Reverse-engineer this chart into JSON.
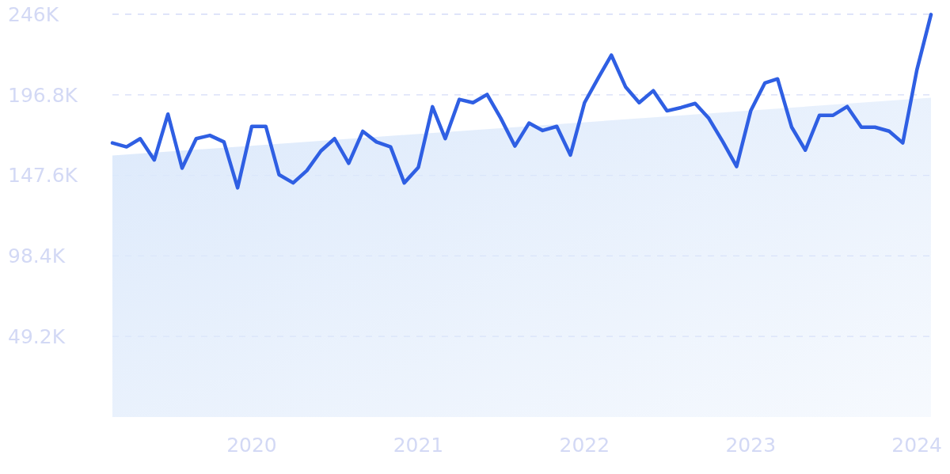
{
  "chart_data": {
    "type": "line",
    "x": [
      "2019-03",
      "2019-04",
      "2019-05",
      "2019-06",
      "2019-07",
      "2019-08",
      "2019-09",
      "2019-10",
      "2019-11",
      "2019-12",
      "2020-01",
      "2020-02",
      "2020-03",
      "2020-04",
      "2020-05",
      "2020-06",
      "2020-07",
      "2020-08",
      "2020-09",
      "2020-10",
      "2020-11",
      "2020-12",
      "2021-01",
      "2021-02",
      "2021-03",
      "2021-04",
      "2021-05",
      "2021-06",
      "2021-07",
      "2021-08",
      "2021-09",
      "2021-10",
      "2021-11",
      "2021-12",
      "2022-01",
      "2022-02",
      "2022-03",
      "2022-04",
      "2022-05",
      "2022-06",
      "2022-07",
      "2022-08",
      "2022-09",
      "2022-10",
      "2022-11",
      "2022-12",
      "2023-01",
      "2023-02",
      "2023-03",
      "2023-04",
      "2023-05",
      "2023-06",
      "2023-07",
      "2023-08",
      "2023-09",
      "2023-10",
      "2023-11",
      "2023-12",
      "2024-01",
      "2024-02"
    ],
    "series": [
      {
        "type": "area",
        "color": "#dce9fb",
        "x": [
          "2019-03",
          "2024-02"
        ],
        "values": [
          159700,
          195000
        ]
      },
      {
        "color": "#2f5fe3",
        "values": [
          167400,
          165000,
          170000,
          157000,
          185000,
          152000,
          170000,
          172000,
          168000,
          140000,
          177500,
          177500,
          148000,
          143000,
          150500,
          162500,
          170000,
          155000,
          174500,
          168000,
          165000,
          143000,
          152500,
          189500,
          170000,
          194000,
          192000,
          197000,
          182500,
          165500,
          179500,
          175000,
          177500,
          160000,
          192000,
          207500,
          221000,
          201700,
          192000,
          199300,
          187000,
          189000,
          191500,
          182400,
          168000,
          153000,
          187000,
          204000,
          206500,
          177000,
          163000,
          184300,
          184300,
          189600,
          177000,
          177000,
          174600,
          167400,
          212000,
          245800
        ]
      }
    ],
    "xlim": [
      "2019-03",
      "2024-02"
    ],
    "xticks": [
      {
        "value": "2020-01",
        "label": "2020"
      },
      {
        "value": "2021-01",
        "label": "2021"
      },
      {
        "value": "2022-01",
        "label": "2022"
      },
      {
        "value": "2023-01",
        "label": "2023"
      },
      {
        "value": "2024-01",
        "label": "2024"
      }
    ],
    "ylim": [
      0,
      246000
    ],
    "yticks": [
      {
        "value": 49200,
        "label": "49.2K"
      },
      {
        "value": 98400,
        "label": "98.4K"
      },
      {
        "value": 147600,
        "label": "147.6K"
      },
      {
        "value": 196800,
        "label": "196.8K"
      },
      {
        "value": 246000,
        "label": "246K"
      }
    ],
    "grid": "y",
    "line_style": "solid",
    "marker": "none"
  }
}
